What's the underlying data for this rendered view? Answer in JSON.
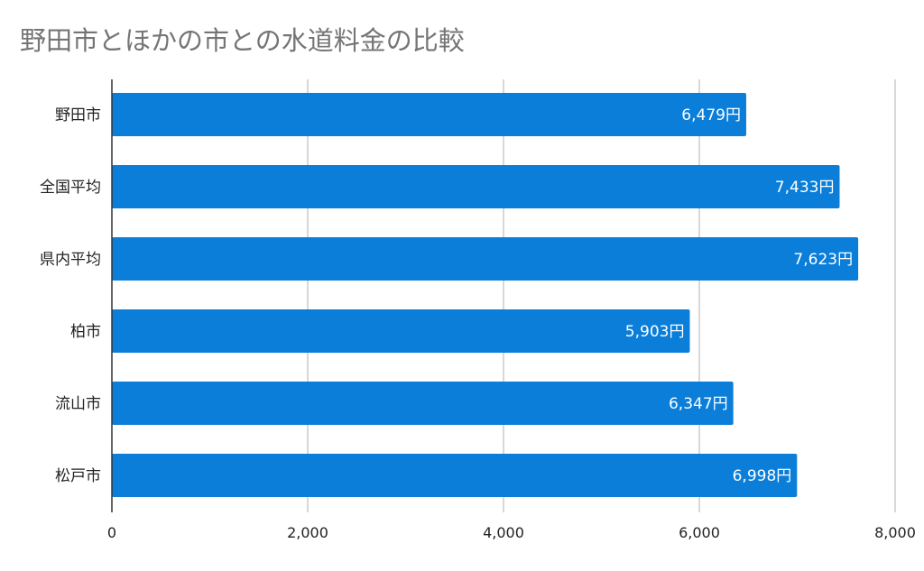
{
  "chart_data": {
    "type": "bar",
    "orientation": "horizontal",
    "title": "野田市とほかの市との水道料金の比較",
    "categories": [
      "野田市",
      "全国平均",
      "県内平均",
      "柏市",
      "流山市",
      "松戸市"
    ],
    "values": [
      6479,
      7433,
      7623,
      5903,
      6347,
      6998
    ],
    "data_labels": [
      "6,479円",
      "7,433円",
      "7,623円",
      "5,903円",
      "6,347円",
      "6,998円"
    ],
    "xticks": [
      0,
      2000,
      4000,
      6000,
      8000
    ],
    "xtick_labels": [
      "0",
      "2,000",
      "4,000",
      "6,000",
      "8,000"
    ],
    "xlim": [
      0,
      8000
    ],
    "xlabel": "",
    "ylabel": "",
    "grid": true,
    "legend": "none",
    "colors": {
      "bar": "#0a7ed9",
      "grid": "#cccccc",
      "title": "#757575"
    }
  }
}
